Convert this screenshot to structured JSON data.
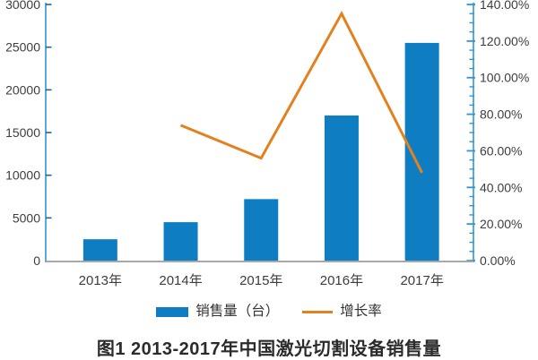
{
  "figure": {
    "caption": "图1  2013-2017年中国激光切割设备销售量"
  },
  "chart_data": {
    "type": "combo",
    "title": "图1  2013-2017年中国激光切割设备销售量",
    "categories": [
      "2013年",
      "2014年",
      "2015年",
      "2016年",
      "2017年"
    ],
    "series": [
      {
        "name": "销售量（台）",
        "type": "bar",
        "axis": "left",
        "values": [
          2500,
          4500,
          7200,
          17000,
          25500
        ]
      },
      {
        "name": "增长率",
        "type": "line",
        "axis": "right",
        "unit": "%",
        "values": [
          null,
          74,
          56,
          135,
          48
        ]
      }
    ],
    "left_axis": {
      "min": 0,
      "max": 30000,
      "ticks": [
        {
          "v": 0,
          "label": "0"
        },
        {
          "v": 5000,
          "label": "5000"
        },
        {
          "v": 10000,
          "label": "10000"
        },
        {
          "v": 15000,
          "label": "15000"
        },
        {
          "v": 20000,
          "label": "20000"
        },
        {
          "v": 25000,
          "label": "25000"
        },
        {
          "v": 30000,
          "label": "30000"
        }
      ]
    },
    "right_axis": {
      "min": 0,
      "max": 140,
      "minor_step": 5,
      "ticks": [
        {
          "v": 0,
          "label": "0.00%"
        },
        {
          "v": 20,
          "label": "20.00%"
        },
        {
          "v": 40,
          "label": "40.00%"
        },
        {
          "v": 60,
          "label": "60.00%"
        },
        {
          "v": 80,
          "label": "80.00%"
        },
        {
          "v": 100,
          "label": "100.00%"
        },
        {
          "v": 120,
          "label": "120.00%"
        },
        {
          "v": 140,
          "label": "140.00%"
        }
      ]
    },
    "legend_position": "bottom",
    "grid": false,
    "colors": {
      "bar": "#0e7dc2",
      "line": "#e2811e",
      "axis": "#2e96d5",
      "left_tick": "#23638f",
      "baseline": "#a8a8a8",
      "label": "#3d3d3d"
    }
  }
}
